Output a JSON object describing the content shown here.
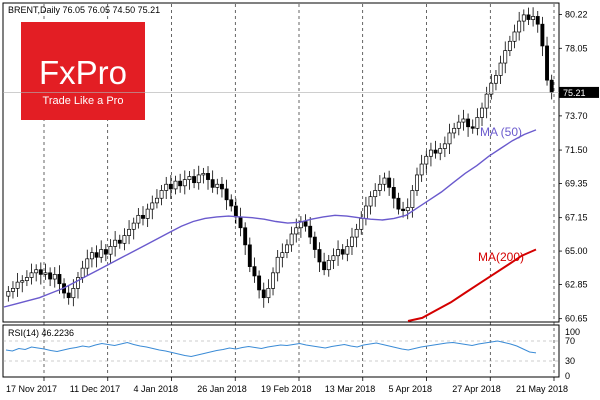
{
  "logo": {
    "brand": "FxPro",
    "tagline": "Trade Like a Pro",
    "color": "#e31e24"
  },
  "chart_data": {
    "type": "line",
    "title": "BRENT,Daily  76.05 76.05 74.50 75.21",
    "price_panel": {
      "ylim": [
        60.5,
        80.9
      ],
      "y_ticks": [
        "80.22",
        "78.05",
        "75.21",
        "73.70",
        "71.50",
        "69.35",
        "67.15",
        "65.00",
        "62.85",
        "60.65"
      ],
      "current_price_label": "75.21",
      "current_price": 75.21,
      "grid": "vertical dashed separators",
      "candles_close_approx": [
        62.4,
        62.6,
        63.0,
        63.1,
        63.3,
        63.6,
        63.8,
        63.5,
        63.6,
        63.2,
        63.5,
        62.9,
        62.3,
        62.0,
        62.6,
        63.3,
        63.9,
        64.5,
        64.9,
        64.6,
        65.1,
        64.8,
        65.3,
        65.7,
        65.5,
        66.0,
        66.4,
        66.8,
        67.3,
        67.1,
        67.7,
        68.1,
        68.4,
        68.9,
        69.3,
        69.0,
        69.5,
        69.2,
        69.6,
        69.8,
        69.4,
        69.9,
        70.0,
        69.6,
        69.1,
        69.3,
        69.0,
        68.3,
        67.9,
        67.2,
        66.5,
        65.4,
        64.0,
        63.4,
        62.5,
        62.0,
        62.6,
        63.6,
        64.6,
        64.9,
        65.4,
        66.1,
        66.5,
        66.9,
        66.6,
        65.9,
        65.1,
        64.3,
        63.8,
        64.4,
        64.7,
        65.1,
        64.8,
        65.3,
        65.9,
        66.4,
        67.1,
        67.9,
        68.5,
        68.9,
        69.3,
        69.7,
        69.1,
        68.4,
        67.7,
        67.6,
        67.8,
        68.9,
        69.9,
        70.6,
        71.1,
        71.5,
        71.3,
        71.6,
        71.9,
        72.6,
        72.9,
        73.3,
        73.5,
        73.0,
        72.9,
        73.6,
        74.2,
        75.1,
        75.8,
        76.3,
        77.1,
        77.9,
        78.5,
        79.1,
        79.8,
        80.2,
        79.9,
        80.1,
        79.6,
        78.2,
        76.0,
        75.21
      ],
      "series": [
        {
          "name": "MA (50)",
          "color": "#6a5acd",
          "values": [
            61.4,
            61.6,
            61.8,
            62.0,
            62.3,
            62.6,
            63.0,
            63.4,
            63.8,
            64.2,
            64.6,
            65.0,
            65.4,
            65.8,
            66.2,
            66.6,
            66.9,
            67.1,
            67.2,
            67.25,
            67.2,
            67.15,
            67.05,
            66.9,
            66.8,
            66.85,
            67.05,
            67.2,
            67.3,
            67.25,
            67.15,
            67.05,
            67.0,
            67.1,
            67.3,
            67.8,
            68.3,
            68.8,
            69.4,
            70.0,
            70.5,
            71.1,
            71.6,
            72.1,
            72.5,
            72.8
          ]
        },
        {
          "name": "MA(200)",
          "color": "#d40000",
          "values": [
            60.5,
            60.7,
            61.2,
            61.7,
            62.3,
            62.9,
            63.5,
            64.1,
            64.7,
            65.1
          ]
        }
      ]
    },
    "rsi_panel": {
      "label": "RSI(14) 46.2236",
      "y_ticks": [
        "100",
        "70",
        "30",
        "0"
      ],
      "levels": [
        70,
        30
      ],
      "values": [
        52,
        50,
        55,
        53,
        58,
        56,
        54,
        51,
        49,
        52,
        55,
        57,
        60,
        58,
        62,
        65,
        63,
        61,
        64,
        67,
        63,
        60,
        58,
        55,
        52,
        50,
        47,
        44,
        41,
        39,
        42,
        45,
        48,
        51,
        53,
        56,
        54,
        57,
        59,
        57,
        55,
        58,
        60,
        62,
        61,
        63,
        65,
        62,
        60,
        58,
        56,
        59,
        61,
        63,
        60,
        58,
        62,
        64,
        66,
        63,
        60,
        57,
        54,
        52,
        55,
        58,
        60,
        62,
        64,
        66,
        67,
        65,
        63,
        61,
        64,
        66,
        68,
        70,
        67,
        64,
        60,
        54,
        48,
        46.2
      ]
    },
    "x_ticks": [
      "17 Nov 2017",
      "11 Dec 2017",
      "4 Jan 2018",
      "26 Jan 2018",
      "19 Feb 2018",
      "13 Mar 2018",
      "5 Apr 2018",
      "27 Apr 2018",
      "21 May 2018"
    ]
  }
}
